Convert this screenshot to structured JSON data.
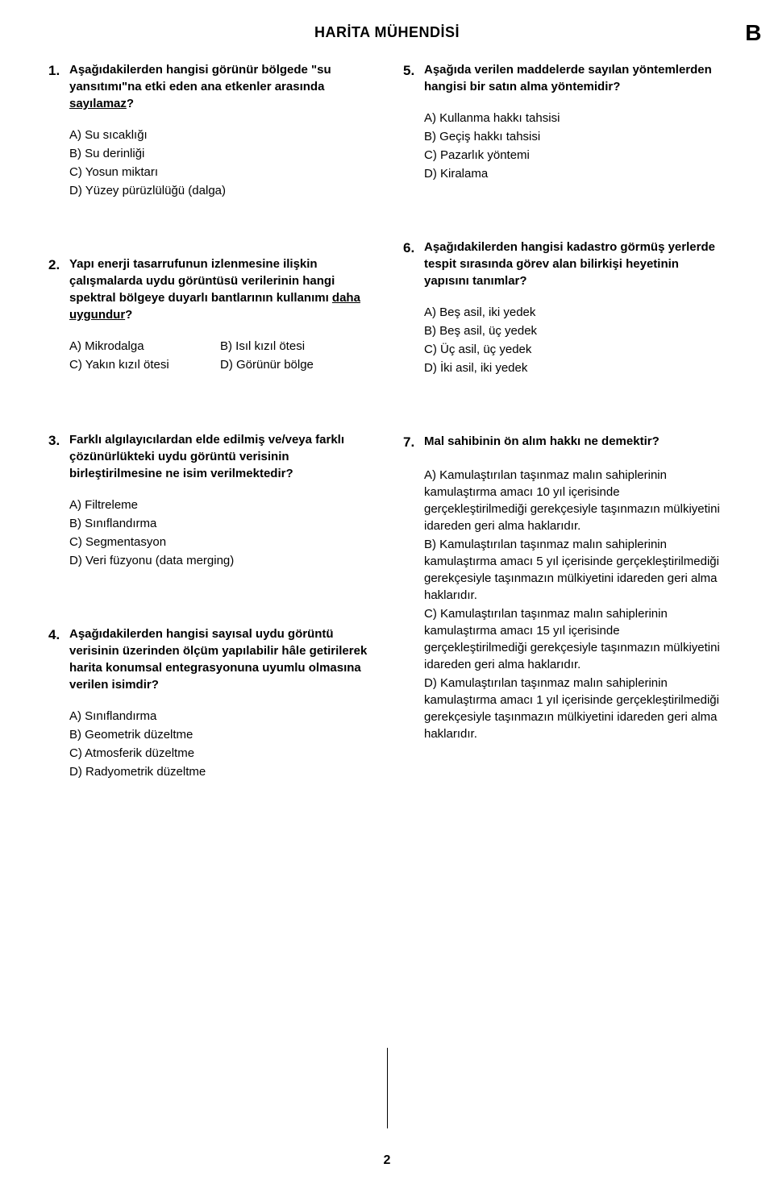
{
  "header": {
    "title": "HARİTA MÜHENDİSİ",
    "marker": "B"
  },
  "page_number": "2",
  "left_column": [
    {
      "num": "1.",
      "text_pre": "Aşağıdakilerden hangisi görünür bölgede \"su yansıtımı\"na etki eden ana etkenler arasında ",
      "text_underlined": "sayılamaz",
      "text_post": "?",
      "layout": "single",
      "options": [
        "A) Su sıcaklığı",
        "B) Su derinliği",
        "C) Yosun miktarı",
        "D) Yüzey pürüzlülüğü (dalga)"
      ]
    },
    {
      "num": "2.",
      "text_pre": "Yapı enerji tasarrufunun izlenmesine ilişkin çalışmalarda uydu görüntüsü verilerinin hangi spektral bölgeye duyarlı bantlarının kullanımı ",
      "text_underlined": "daha uygundur",
      "text_post": "?",
      "layout": "two-col",
      "options": [
        "A) Mikrodalga",
        "B) Isıl kızıl ötesi",
        "C) Yakın kızıl ötesi",
        "D) Görünür bölge"
      ]
    },
    {
      "num": "3.",
      "text_pre": "Farklı algılayıcılardan elde edilmiş ve/veya farklı çözünürlükteki uydu görüntü verisinin birleştirilmesine ne isim verilmektedir?",
      "text_underlined": "",
      "text_post": "",
      "layout": "single",
      "options": [
        "A) Filtreleme",
        "B) Sınıflandırma",
        "C) Segmentasyon",
        "D) Veri füzyonu (data merging)"
      ]
    },
    {
      "num": "4.",
      "text_pre": "Aşağıdakilerden hangisi sayısal uydu görüntü verisinin üzerinden ölçüm yapılabilir hâle getirilerek harita konumsal entegrasyonuna uyumlu olmasına verilen isimdir?",
      "text_underlined": "",
      "text_post": "",
      "layout": "single",
      "options": [
        "A) Sınıflandırma",
        "B) Geometrik düzeltme",
        "C) Atmosferik düzeltme",
        "D) Radyometrik düzeltme"
      ]
    }
  ],
  "right_column": [
    {
      "num": "5.",
      "text_pre": "Aşağıda verilen maddelerde sayılan yöntemlerden hangisi bir satın alma yöntemidir?",
      "text_underlined": "",
      "text_post": "",
      "layout": "single",
      "options": [
        "A) Kullanma hakkı tahsisi",
        "B) Geçiş hakkı tahsisi",
        "C) Pazarlık yöntemi",
        "D) Kiralama"
      ]
    },
    {
      "num": "6.",
      "text_pre": "Aşağıdakilerden hangisi kadastro görmüş yerlerde tespit sırasında görev alan bilirkişi heyetinin yapısını tanımlar?",
      "text_underlined": "",
      "text_post": "",
      "layout": "single",
      "options": [
        "A) Beş asil, iki yedek",
        "B) Beş asil, üç yedek",
        "C) Üç asil, üç yedek",
        "D) İki asil, iki yedek"
      ]
    },
    {
      "num": "7.",
      "text_pre": "Mal sahibinin ön alım hakkı ne demektir?",
      "text_underlined": "",
      "text_post": "",
      "layout": "single",
      "options": [
        "A) Kamulaştırılan taşınmaz malın sahiplerinin kamulaştırma amacı 10 yıl içerisinde gerçekleştirilmediği gerekçesiyle taşınmazın mülkiyetini idareden geri alma haklarıdır.",
        "B) Kamulaştırılan taşınmaz malın sahiplerinin kamulaştırma amacı 5 yıl içerisinde gerçekleştirilmediği gerekçesiyle taşınmazın mülkiyetini idareden geri alma haklarıdır.",
        "C) Kamulaştırılan taşınmaz malın sahiplerinin kamulaştırma amacı 15 yıl içerisinde gerçekleştirilmediği gerekçesiyle taşınmazın mülkiyetini idareden geri alma haklarıdır.",
        "D) Kamulaştırılan taşınmaz malın sahiplerinin kamulaştırma amacı 1 yıl içerisinde gerçekleştirilmediği gerekçesiyle taşınmazın mülkiyetini idareden geri alma haklarıdır."
      ]
    }
  ]
}
